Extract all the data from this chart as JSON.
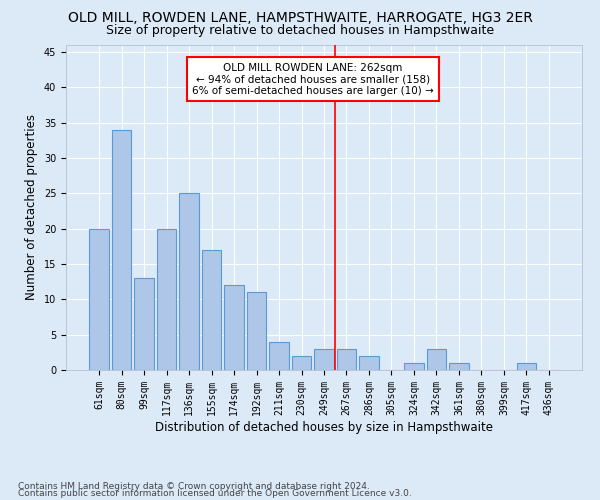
{
  "title": "OLD MILL, ROWDEN LANE, HAMPSTHWAITE, HARROGATE, HG3 2ER",
  "subtitle": "Size of property relative to detached houses in Hampsthwaite",
  "xlabel": "Distribution of detached houses by size in Hampsthwaite",
  "ylabel": "Number of detached properties",
  "categories": [
    "61sqm",
    "80sqm",
    "99sqm",
    "117sqm",
    "136sqm",
    "155sqm",
    "174sqm",
    "192sqm",
    "211sqm",
    "230sqm",
    "249sqm",
    "267sqm",
    "286sqm",
    "305sqm",
    "324sqm",
    "342sqm",
    "361sqm",
    "380sqm",
    "399sqm",
    "417sqm",
    "436sqm"
  ],
  "values": [
    20,
    34,
    13,
    20,
    25,
    17,
    12,
    11,
    4,
    2,
    3,
    3,
    2,
    0,
    1,
    3,
    1,
    0,
    0,
    1,
    0
  ],
  "bar_color": "#aec6e8",
  "bar_edge_color": "#5b9bd5",
  "background_color": "#dce9f7",
  "grid_color": "#ffffff",
  "vline_x_index": 11,
  "vline_color": "red",
  "annotation_title": "OLD MILL ROWDEN LANE: 262sqm",
  "annotation_line1": "← 94% of detached houses are smaller (158)",
  "annotation_line2": "6% of semi-detached houses are larger (10) →",
  "annotation_box_color": "white",
  "annotation_box_edge": "red",
  "ylim": [
    0,
    46
  ],
  "yticks": [
    0,
    5,
    10,
    15,
    20,
    25,
    30,
    35,
    40,
    45
  ],
  "footnote1": "Contains HM Land Registry data © Crown copyright and database right 2024.",
  "footnote2": "Contains public sector information licensed under the Open Government Licence v3.0.",
  "title_fontsize": 10,
  "subtitle_fontsize": 9,
  "axis_label_fontsize": 8.5,
  "tick_fontsize": 7,
  "annotation_fontsize": 7.5,
  "footnote_fontsize": 6.5
}
